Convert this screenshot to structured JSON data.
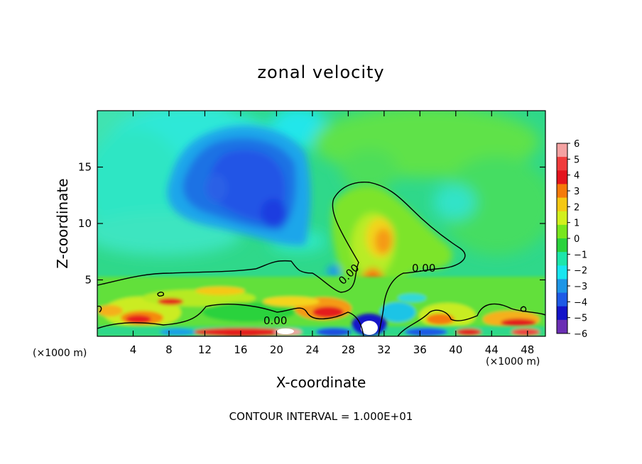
{
  "chart_data": {
    "type": "heatmap",
    "title": "zonal velocity",
    "xlabel": "X-coordinate",
    "ylabel": "Z-coordinate",
    "x_unit_left": "(×1000 m)",
    "x_unit_right": "(×1000 m)",
    "xlim": [
      0,
      50
    ],
    "ylim": [
      0,
      20
    ],
    "x_ticks": [
      "4",
      "8",
      "12",
      "16",
      "20",
      "24",
      "28",
      "32",
      "36",
      "40",
      "44",
      "48"
    ],
    "y_ticks": [
      "5",
      "10",
      "15"
    ],
    "x_tick_values": [
      4,
      8,
      12,
      16,
      20,
      24,
      28,
      32,
      36,
      40,
      44,
      48
    ],
    "y_tick_values": [
      5,
      10,
      15
    ],
    "colorbar": {
      "labels": [
        "6",
        "5",
        "4",
        "3",
        "2",
        "1",
        "0",
        "−1",
        "−2",
        "−3",
        "−4",
        "−5",
        "−6"
      ],
      "colors": [
        "#f4a2a2",
        "#f03c3c",
        "#e4141e",
        "#f57a0a",
        "#f5c814",
        "#d2f01e",
        "#78e61e",
        "#2ad23c",
        "#1ee6aa",
        "#19e6f0",
        "#1e96e6",
        "#1e5ae6",
        "#1414c8",
        "#6b2fb4"
      ]
    },
    "contour_labels": [
      "0.00",
      "0.00",
      "0.00"
    ],
    "footer": "CONTOUR INTERVAL = 1.000E+01"
  }
}
